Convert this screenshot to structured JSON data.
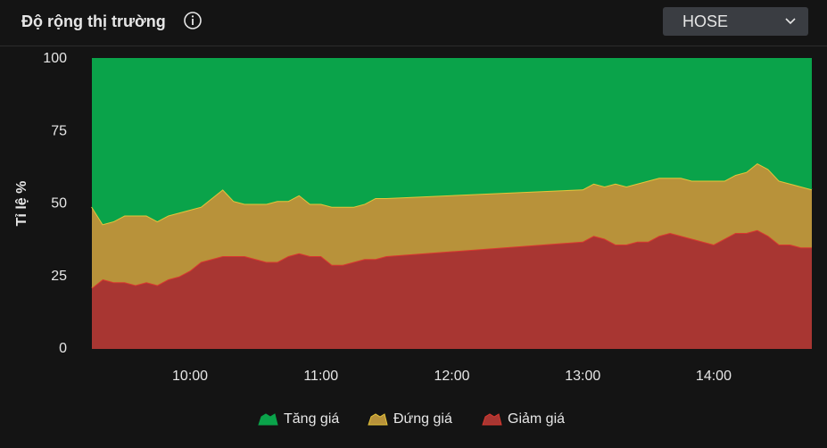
{
  "header": {
    "title": "Độ rộng thị trường",
    "market": "HOSE"
  },
  "chart_data": {
    "type": "stacked-area",
    "y_label": "Tỉ lệ %",
    "x": [
      "09:15",
      "09:20",
      "09:25",
      "09:30",
      "09:35",
      "09:40",
      "09:45",
      "09:50",
      "09:55",
      "10:00",
      "10:05",
      "10:10",
      "10:15",
      "10:20",
      "10:25",
      "10:30",
      "10:35",
      "10:40",
      "10:45",
      "10:50",
      "10:55",
      "11:00",
      "11:05",
      "11:10",
      "11:15",
      "11:20",
      "11:25",
      "11:30",
      "13:00",
      "13:05",
      "13:10",
      "13:15",
      "13:20",
      "13:25",
      "13:30",
      "13:35",
      "13:40",
      "13:45",
      "13:50",
      "13:55",
      "14:00",
      "14:05",
      "14:10",
      "14:15",
      "14:20",
      "14:25",
      "14:30",
      "14:35",
      "14:40",
      "14:45"
    ],
    "xlim": [
      "09:15",
      "14:45"
    ],
    "xticks": [
      "10:00",
      "11:00",
      "12:00",
      "13:00",
      "14:00"
    ],
    "ylim": [
      0,
      100
    ],
    "yticks": [
      0,
      25,
      50,
      75,
      100
    ],
    "series": [
      {
        "name": "Tăng giá",
        "color": "#0aa34a",
        "line_color": "#0aa34a",
        "values": [
          51,
          57,
          56,
          54,
          54,
          54,
          56,
          54,
          53,
          52,
          51,
          48,
          45,
          49,
          50,
          50,
          50,
          49,
          49,
          47,
          50,
          50,
          51,
          51,
          51,
          50,
          48,
          48,
          45,
          43,
          44,
          43,
          44,
          43,
          42,
          41,
          41,
          41,
          42,
          42,
          42,
          42,
          40,
          39,
          36,
          38,
          42,
          43,
          44,
          45
        ]
      },
      {
        "name": "Đứng giá",
        "color": "#b8923a",
        "line_color": "#e6c53a",
        "values": [
          28,
          19,
          21,
          23,
          24,
          23,
          22,
          22,
          22,
          21,
          19,
          21,
          23,
          19,
          18,
          19,
          20,
          21,
          19,
          20,
          18,
          18,
          20,
          20,
          19,
          19,
          21,
          20,
          18,
          18,
          18,
          21,
          20,
          20,
          21,
          20,
          19,
          20,
          20,
          21,
          22,
          20,
          20,
          21,
          23,
          23,
          22,
          21,
          21,
          20
        ]
      },
      {
        "name": "Giảm giá",
        "color": "#a83632",
        "line_color": "#d9382f",
        "values": [
          21,
          24,
          23,
          23,
          22,
          23,
          22,
          24,
          25,
          27,
          30,
          31,
          32,
          32,
          32,
          31,
          30,
          30,
          32,
          33,
          32,
          32,
          29,
          29,
          30,
          31,
          31,
          32,
          37,
          39,
          38,
          36,
          36,
          37,
          37,
          39,
          40,
          39,
          38,
          37,
          36,
          38,
          40,
          40,
          41,
          39,
          36,
          36,
          35,
          35
        ]
      }
    ]
  }
}
